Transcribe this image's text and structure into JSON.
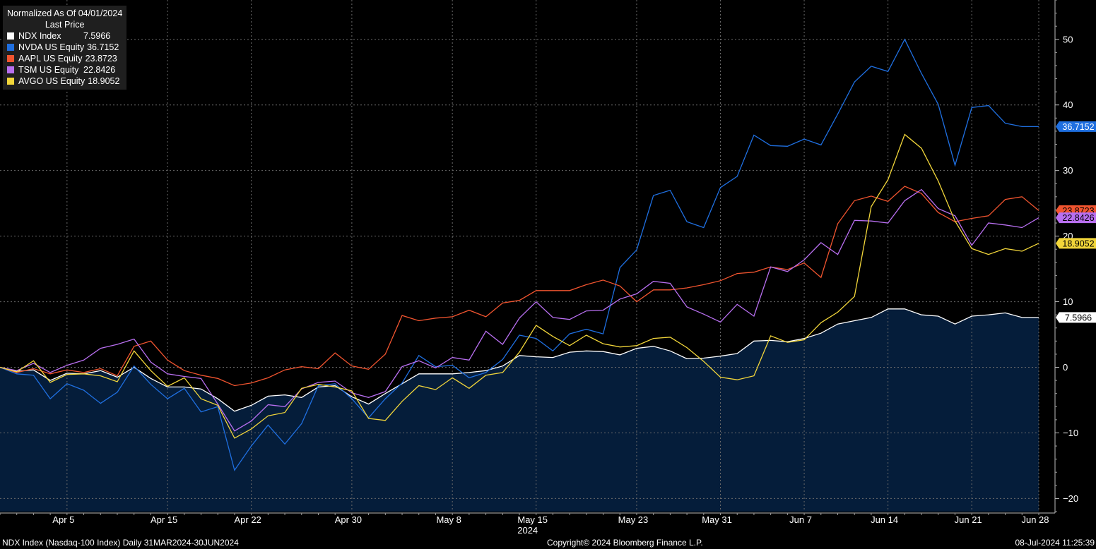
{
  "legend": {
    "title": "Normalized As Of 04/01/2024",
    "subtitle": "Last Price",
    "items": [
      {
        "name": "NDX Index",
        "value": "7.5966",
        "color": "#ffffff"
      },
      {
        "name": "NVDA US Equity",
        "value": "36.7152",
        "color": "#1f6fe0"
      },
      {
        "name": "AAPL US Equity",
        "value": "23.8723",
        "color": "#f0542f"
      },
      {
        "name": "TSM US Equity",
        "value": "22.8426",
        "color": "#b86ff0"
      },
      {
        "name": "AVGO US Equity",
        "value": "18.9052",
        "color": "#f2d63a"
      }
    ]
  },
  "footer": {
    "left": "NDX Index (Nasdaq-100 Index)  Daily 31MAR2024-30JUN2024",
    "center": "Copyright© 2024 Bloomberg Finance L.P.",
    "right": "08-Jul-2024 11:25:39"
  },
  "chart_data": {
    "type": "line",
    "x": [
      "2024-04-01",
      "2024-04-02",
      "2024-04-03",
      "2024-04-04",
      "2024-04-05",
      "2024-04-08",
      "2024-04-09",
      "2024-04-10",
      "2024-04-11",
      "2024-04-12",
      "2024-04-15",
      "2024-04-16",
      "2024-04-17",
      "2024-04-18",
      "2024-04-19",
      "2024-04-22",
      "2024-04-23",
      "2024-04-24",
      "2024-04-25",
      "2024-04-26",
      "2024-04-29",
      "2024-04-30",
      "2024-05-01",
      "2024-05-02",
      "2024-05-03",
      "2024-05-06",
      "2024-05-07",
      "2024-05-08",
      "2024-05-09",
      "2024-05-10",
      "2024-05-13",
      "2024-05-14",
      "2024-05-15",
      "2024-05-16",
      "2024-05-17",
      "2024-05-20",
      "2024-05-21",
      "2024-05-22",
      "2024-05-23",
      "2024-05-24",
      "2024-05-28",
      "2024-05-29",
      "2024-05-30",
      "2024-05-31",
      "2024-06-03",
      "2024-06-04",
      "2024-06-05",
      "2024-06-06",
      "2024-06-07",
      "2024-06-10",
      "2024-06-11",
      "2024-06-12",
      "2024-06-13",
      "2024-06-14",
      "2024-06-17",
      "2024-06-18",
      "2024-06-20",
      "2024-06-21",
      "2024-06-24",
      "2024-06-25",
      "2024-06-26",
      "2024-06-27",
      "2024-06-28"
    ],
    "x_ticks": [
      "Apr 5",
      "Apr 15",
      "Apr 22",
      "Apr 30",
      "May 8",
      "May 15",
      "May 23",
      "May 31",
      "Jun 7",
      "Jun 14",
      "Jun 21",
      "Jun 28"
    ],
    "x_tick_indices": [
      4,
      10,
      15,
      21,
      27,
      32,
      38,
      43,
      48,
      53,
      58,
      62
    ],
    "x_year_label": "2024",
    "x_year_index": 32,
    "ylim": [
      -22,
      56
    ],
    "y_ticks": [
      -20,
      -10,
      0,
      10,
      20,
      30,
      40,
      50
    ],
    "grid": true,
    "legend_position": "top-left",
    "series": [
      {
        "name": "NDX Index",
        "color": "#ffffff",
        "fill": "#051d3a",
        "last_label": "7.5966",
        "label_bg": "#ffffff",
        "label_fg": "#000000",
        "values": [
          0,
          -0.6,
          -0.4,
          -2,
          -0.9,
          -1,
          -0.5,
          -1.5,
          0,
          -1.7,
          -3,
          -3,
          -3.3,
          -4.8,
          -6.7,
          -5.8,
          -4.4,
          -4.2,
          -4.6,
          -3,
          -2.8,
          -4.5,
          -5.6,
          -4,
          -2.5,
          -1,
          -1,
          -1,
          -0.8,
          -0.5,
          0.2,
          1.8,
          1.6,
          1.5,
          2.3,
          2.5,
          2.4,
          1.9,
          2.9,
          3.2,
          2.5,
          1.3,
          1.4,
          1.7,
          2.1,
          4,
          4.1,
          3.9,
          4.4,
          5.2,
          6.6,
          7.1,
          7.6,
          8.9,
          8.9,
          8,
          7.8,
          6.6,
          7.8,
          8,
          8.3,
          7.6,
          7.6
        ]
      },
      {
        "name": "NVDA US Equity",
        "color": "#1f6fe0",
        "last_label": "36.7152",
        "label_bg": "#1f6fe0",
        "label_fg": "#ffffff",
        "values": [
          0,
          -1,
          -1.2,
          -4.8,
          -2.5,
          -3.5,
          -5.5,
          -3.8,
          0.2,
          -2.6,
          -4.8,
          -3.2,
          -6.8,
          -6,
          -15.7,
          -12,
          -8.8,
          -11.7,
          -8.6,
          -2.8,
          -2.5,
          -4.8,
          -7.7,
          -4.8,
          -2.4,
          1.8,
          0.1,
          0.3,
          -1.6,
          -0.8,
          1.2,
          4.9,
          4.4,
          2.5,
          5.1,
          5.8,
          5.1,
          15.2,
          17.9,
          26.2,
          27,
          22.2,
          21.3,
          27.4,
          29.1,
          35.4,
          33.8,
          33.7,
          34.8,
          33.9,
          38.6,
          43.5,
          45.9,
          45.1,
          50,
          44.8,
          40.1,
          30.8,
          39.6,
          39.9,
          37.2,
          36.7,
          36.7
        ]
      },
      {
        "name": "AAPL US Equity",
        "color": "#f0542f",
        "last_label": "23.8723",
        "label_bg": "#f0542f",
        "label_fg": "#000000",
        "values": [
          0,
          -0.8,
          -0.2,
          -1,
          -0.4,
          -0.8,
          -0.2,
          -1.3,
          3.2,
          4,
          1.1,
          -0.5,
          -1.2,
          -1.7,
          -2.8,
          -2.4,
          -1.6,
          -0.4,
          0.1,
          -0.2,
          2.2,
          0.2,
          -0.3,
          2,
          7.9,
          7.1,
          7.5,
          7.7,
          8.7,
          7.7,
          9.8,
          10.2,
          11.7,
          11.7,
          11.7,
          12.6,
          13.3,
          12.4,
          10,
          11.8,
          11.8,
          12.1,
          12.6,
          13.2,
          14.3,
          14.5,
          15.3,
          14.9,
          15.9,
          13.7,
          21.9,
          25.4,
          26.1,
          25.3,
          27.6,
          26.5,
          23.6,
          22.2,
          22.7,
          23.1,
          25.6,
          26,
          23.9
        ]
      },
      {
        "name": "TSM US Equity",
        "color": "#b86ff0",
        "last_label": "22.8426",
        "label_bg": "#b86ff0",
        "label_fg": "#000000",
        "values": [
          0,
          -0.5,
          0.6,
          -0.8,
          0.3,
          1.1,
          2.9,
          3.5,
          4.3,
          0.8,
          -1,
          -1.4,
          -1.7,
          -5.6,
          -9.7,
          -8.2,
          -5.7,
          -6,
          -3.3,
          -2.3,
          -2.1,
          -3.9,
          -4.6,
          -3.7,
          0.1,
          1,
          -0.1,
          1.5,
          1.1,
          5.5,
          3.5,
          7.5,
          10,
          7.6,
          7.3,
          8.6,
          8.7,
          10.4,
          11.2,
          13.1,
          12.8,
          9.2,
          8.1,
          6.9,
          9.6,
          7.8,
          15.3,
          14.6,
          16.4,
          19,
          17.2,
          22.4,
          22.3,
          22,
          25.4,
          27.1,
          24.2,
          23.1,
          18.6,
          22,
          21.7,
          21.3,
          22.8
        ]
      },
      {
        "name": "AVGO US Equity",
        "color": "#f2d63a",
        "last_label": "18.9052",
        "label_bg": "#f2d63a",
        "label_fg": "#000000",
        "values": [
          0,
          -0.7,
          1,
          -2.3,
          -1.1,
          -1,
          -1.3,
          -2.2,
          2.5,
          -0.5,
          -2.9,
          -1.6,
          -4.8,
          -5.8,
          -10.8,
          -9.4,
          -7.4,
          -6.9,
          -3.2,
          -2.6,
          -3,
          -3.6,
          -7.8,
          -8.1,
          -5.2,
          -2.8,
          -3.4,
          -1.6,
          -3.2,
          -1.2,
          -0.8,
          2.3,
          6.4,
          4.7,
          3.3,
          4.9,
          3.6,
          3.1,
          3.3,
          4.4,
          4.6,
          3,
          0.9,
          -1.5,
          -1.9,
          -1.3,
          4.8,
          3.8,
          4.2,
          6.8,
          8.4,
          10.8,
          24.5,
          28.6,
          35.5,
          33.4,
          28.4,
          22.3,
          18.1,
          17.2,
          18.1,
          17.7,
          18.9
        ]
      }
    ]
  }
}
